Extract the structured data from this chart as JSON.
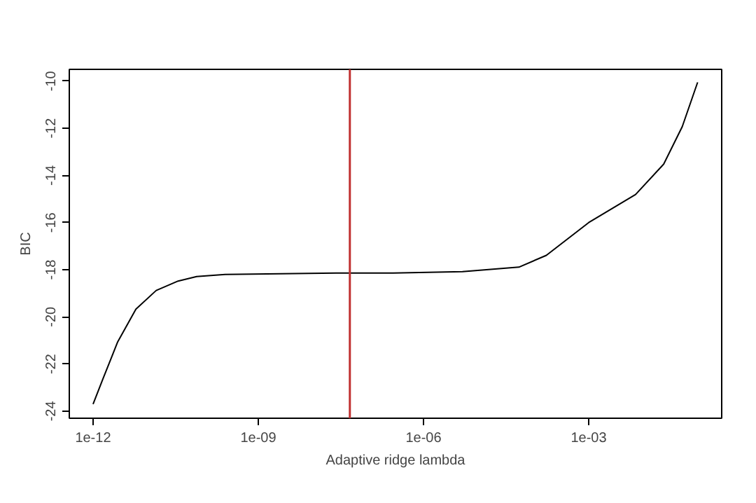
{
  "chart_data": {
    "type": "line",
    "xlabel": "Adaptive ridge lambda",
    "ylabel": "BIC",
    "x": [
      1e-12,
      1.5e-12,
      2.8e-12,
      6e-12,
      1.4e-11,
      3.5e-11,
      7.6e-11,
      2.5e-10,
      2.6e-08,
      2.8e-07,
      5.1e-06,
      5.4e-05,
      0.00017,
      0.001,
      0.0071,
      0.023,
      0.05,
      0.095
    ],
    "series": [
      {
        "color": "#000000",
        "values": [
          -23.7,
          -22.65,
          -21.06,
          -19.67,
          -18.88,
          -18.48,
          -18.29,
          -18.2,
          -18.14,
          -18.14,
          -18.08,
          -17.89,
          -17.39,
          -16.0,
          -14.81,
          -13.52,
          -11.93,
          -10.05
        ]
      }
    ],
    "log": "x",
    "xlim": [
      3.7e-13,
      0.26
    ],
    "ylim": [
      -24.3,
      -9.5
    ],
    "xticks": [
      {
        "value": 1e-12,
        "label": "1e-12"
      },
      {
        "value": 1e-09,
        "label": "1e-09"
      },
      {
        "value": 1e-06,
        "label": "1e-06"
      },
      {
        "value": 0.001,
        "label": "1e-03"
      }
    ],
    "yticks": [
      -24,
      -22,
      -20,
      -18,
      -16,
      -14,
      -12,
      -10
    ],
    "ref_lines": [
      {
        "axis": "x",
        "value": 4.6e-08,
        "color": "#c03030"
      }
    ],
    "grid": false,
    "marker": "none",
    "line_style": "solid"
  }
}
